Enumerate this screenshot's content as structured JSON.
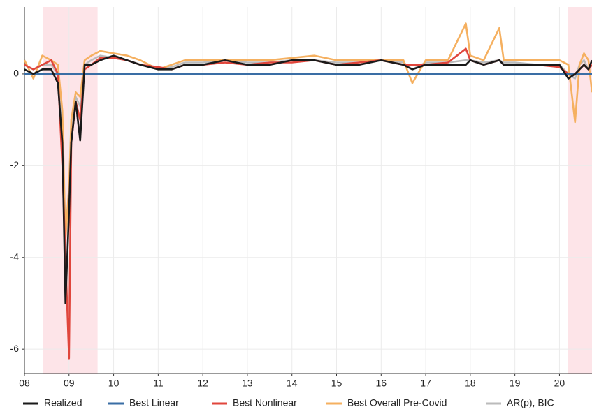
{
  "chart_data": {
    "type": "line",
    "x": [
      8.0,
      8.2,
      8.4,
      8.6,
      8.75,
      8.85,
      8.92,
      9.0,
      9.05,
      9.15,
      9.25,
      9.35,
      9.5,
      9.7,
      10.0,
      10.3,
      10.6,
      11.0,
      11.3,
      11.6,
      12.0,
      12.5,
      13.0,
      13.5,
      14.0,
      14.5,
      15.0,
      15.5,
      16.0,
      16.5,
      16.7,
      17.0,
      17.5,
      17.9,
      18.0,
      18.3,
      18.65,
      18.75,
      19.0,
      19.5,
      20.0,
      20.2,
      20.35,
      20.45,
      20.55,
      20.65,
      20.73
    ],
    "series": [
      {
        "name": "Realized",
        "color": "#1a1a1a",
        "values": [
          0.1,
          0.0,
          0.1,
          0.1,
          -0.2,
          -1.5,
          -5.0,
          -3.0,
          -1.5,
          -0.6,
          -1.45,
          0.2,
          0.2,
          0.3,
          0.4,
          0.3,
          0.2,
          0.1,
          0.1,
          0.2,
          0.2,
          0.3,
          0.2,
          0.2,
          0.3,
          0.3,
          0.2,
          0.2,
          0.3,
          0.2,
          0.1,
          0.2,
          0.2,
          0.2,
          0.3,
          0.2,
          0.3,
          0.2,
          0.2,
          0.2,
          0.2,
          -0.1,
          0.0,
          0.1,
          0.2,
          0.1,
          0.3
        ]
      },
      {
        "name": "Best Linear",
        "color": "#3a6ea5",
        "values": [
          0,
          0,
          0,
          0,
          0,
          0,
          0,
          0,
          0,
          0,
          0,
          0,
          0,
          0,
          0,
          0,
          0,
          0,
          0,
          0,
          0,
          0,
          0,
          0,
          0,
          0,
          0,
          0,
          0,
          0,
          0,
          0,
          0,
          0,
          0,
          0,
          0,
          0,
          0,
          0,
          0,
          0,
          0,
          0,
          0,
          0,
          0
        ]
      },
      {
        "name": "Best Nonlinear",
        "color": "#e0463c",
        "values": [
          0.2,
          0.1,
          0.2,
          0.3,
          0.0,
          -2.0,
          -4.0,
          -6.2,
          -1.5,
          -0.6,
          -1.0,
          0.1,
          0.2,
          0.35,
          0.35,
          0.3,
          0.2,
          0.15,
          0.1,
          0.2,
          0.2,
          0.25,
          0.2,
          0.25,
          0.25,
          0.3,
          0.2,
          0.25,
          0.3,
          0.2,
          0.2,
          0.2,
          0.25,
          0.55,
          0.3,
          0.2,
          0.3,
          0.2,
          0.2,
          0.2,
          0.15,
          0.0,
          0.0,
          0.1,
          0.2,
          0.1,
          0.2
        ]
      },
      {
        "name": "Best Overall Pre-Covid",
        "color": "#f5b060",
        "values": [
          0.3,
          -0.1,
          0.4,
          0.3,
          0.2,
          -0.8,
          -3.6,
          -2.5,
          -1.0,
          -0.4,
          -0.5,
          0.3,
          0.4,
          0.5,
          0.45,
          0.4,
          0.3,
          0.1,
          0.2,
          0.3,
          0.3,
          0.3,
          0.3,
          0.3,
          0.35,
          0.4,
          0.3,
          0.3,
          0.3,
          0.3,
          -0.2,
          0.3,
          0.3,
          1.1,
          0.4,
          0.3,
          1.0,
          0.3,
          0.3,
          0.3,
          0.3,
          0.2,
          -1.05,
          0.2,
          0.45,
          0.3,
          -0.4
        ]
      },
      {
        "name": "AR(p), BIC",
        "color": "#bbbbbb",
        "values": [
          0.2,
          0.1,
          0.2,
          0.2,
          0.0,
          -1.2,
          -3.5,
          -2.5,
          -1.2,
          -0.5,
          -0.7,
          0.2,
          0.3,
          0.4,
          0.35,
          0.3,
          0.2,
          0.1,
          0.15,
          0.25,
          0.25,
          0.3,
          0.25,
          0.25,
          0.3,
          0.3,
          0.25,
          0.25,
          0.3,
          0.25,
          0.1,
          0.25,
          0.25,
          0.3,
          0.3,
          0.25,
          0.3,
          0.25,
          0.25,
          0.2,
          0.2,
          0.0,
          -0.1,
          0.2,
          0.3,
          0.1,
          0.2
        ]
      }
    ],
    "recessions": [
      [
        8.42,
        9.64
      ],
      [
        20.19,
        20.73
      ]
    ],
    "recession_color": "#fde4e8",
    "xlim": [
      8,
      20.73
    ],
    "ylim": [
      -6.53,
      1.46
    ],
    "xticks": [
      {
        "value": 8,
        "label": "08"
      },
      {
        "value": 9,
        "label": "09"
      },
      10,
      11,
      12,
      13,
      14,
      15,
      16,
      17,
      18,
      19,
      20
    ],
    "yticks": [
      -6,
      -4,
      -2,
      0
    ],
    "grid": true,
    "legend": "bottom"
  }
}
